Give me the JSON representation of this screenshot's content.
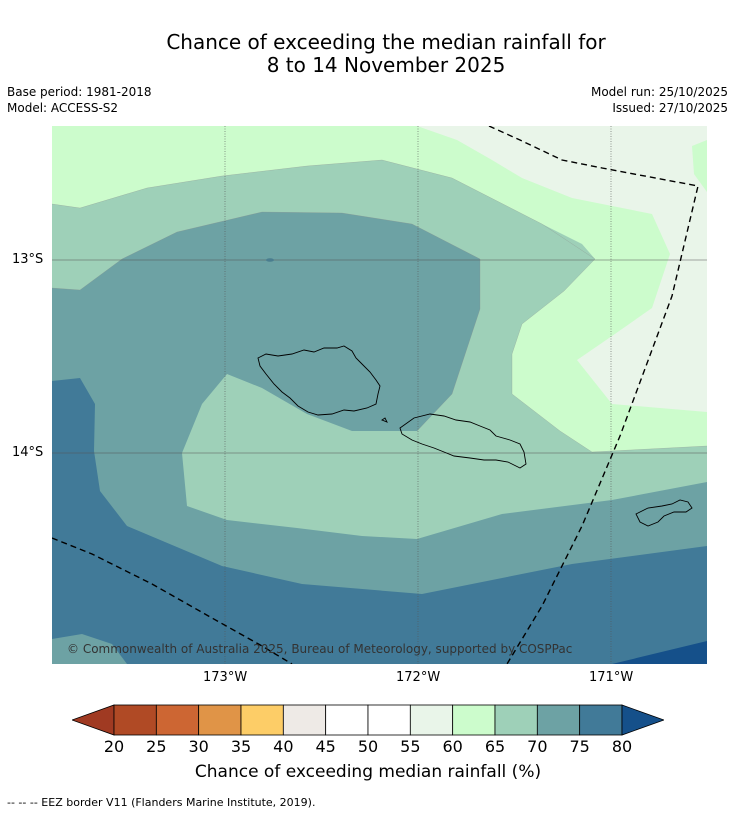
{
  "header": {
    "title_line1": "Chance of exceeding the median rainfall for",
    "title_line2": "8 to 14 November 2025",
    "base_period": "Base period: 1981-2018",
    "model": "Model: ACCESS-S2",
    "model_run": "Model run: 25/10/2025",
    "issued": "Issued: 27/10/2025"
  },
  "map": {
    "lat_labels": [
      "13°S",
      "14°S"
    ],
    "lon_labels": [
      "173°W",
      "172°W",
      "171°W"
    ],
    "copyright": "© Commonwealth of Australia 2025, Bureau of Meteorology, supported by COSPPac"
  },
  "colorbar": {
    "ticks": [
      "20",
      "25",
      "30",
      "35",
      "40",
      "45",
      "50",
      "55",
      "60",
      "65",
      "70",
      "75",
      "80"
    ],
    "colors": [
      "#b04a25",
      "#cd6633",
      "#e09447",
      "#fdcd67",
      "#eeeae6",
      "#ffffff",
      "#ffffff",
      "#e9f5e9",
      "#ccfccc",
      "#9ed0b8",
      "#6da2a4",
      "#417a98"
    ],
    "under_color": "#a03a22",
    "over_color": "#15508a",
    "title": "Chance of exceeding median rainfall (%)"
  },
  "footnote": "--  --  -- EEZ border V11 (Flanders Marine Institute, 2019)."
}
